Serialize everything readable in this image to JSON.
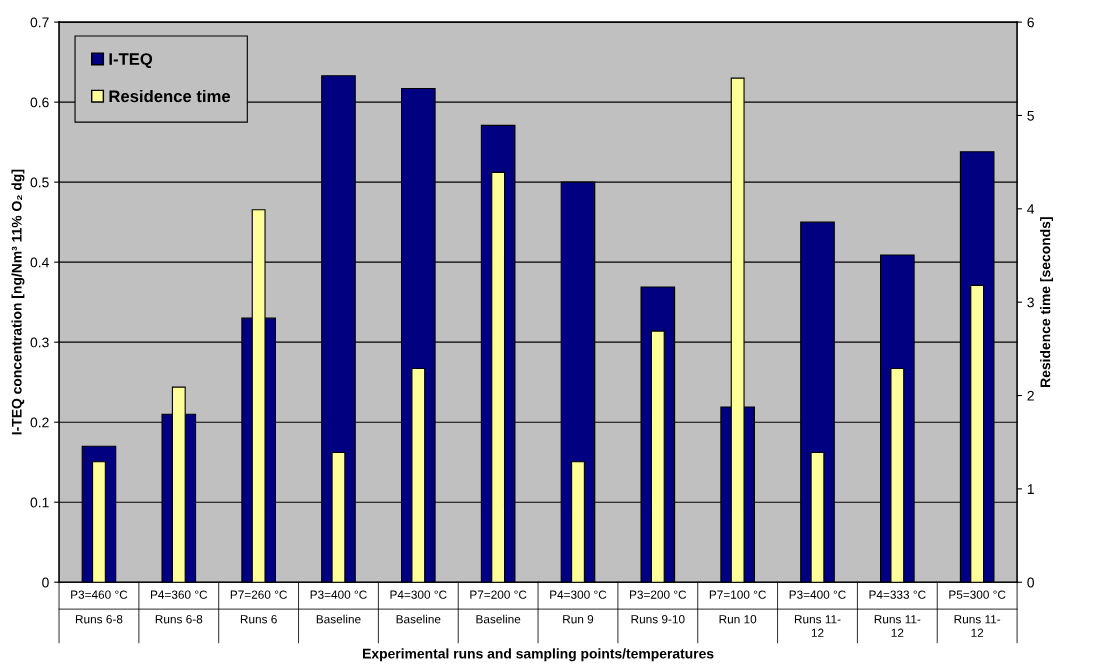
{
  "chart_data": {
    "type": "bar",
    "xlabel": "Experimental runs and sampling points/temperatures",
    "ylabel": "I-TEQ concentration [ng/Nm³ 11% O₂ dg]",
    "y2label": "Residence time [seconds]",
    "categories": [
      "P3=460 °C\nRuns 6-8",
      "P4=360 °C\nRuns 6-8",
      "P7=260 °C\nRuns 6",
      "P3=400 °C\nBaseline",
      "P4=300 °C\nBaseline",
      "P7=200 °C\nBaseline",
      "P4=300 °C\nRun 9",
      "P3=200 °C\nRuns 9-10",
      "P7=100 °C\nRun 10",
      "P3=400 °C\nRuns 11-\n12",
      "P4=333 °C\nRuns 11-\n12",
      "P5=300 °C\nRuns 11-\n12"
    ],
    "series": [
      {
        "name": "I-TEQ",
        "color": "#000080",
        "values": [
          0.17,
          0.21,
          0.33,
          0.633,
          0.617,
          0.571,
          0.5,
          0.369,
          0.219,
          0.45,
          0.409,
          0.538
        ]
      },
      {
        "name": "Residence time",
        "color": "#ffff99",
        "axis": "y2",
        "values": [
          1.29,
          2.09,
          3.99,
          1.39,
          2.29,
          4.39,
          1.29,
          2.69,
          5.4,
          1.39,
          2.29,
          3.18
        ]
      }
    ],
    "ylim": [
      0,
      0.7
    ],
    "yticks": [
      0,
      0.1,
      0.2,
      0.3,
      0.4,
      0.5,
      0.6,
      0.7
    ],
    "y2lim": [
      0,
      6
    ],
    "y2ticks": [
      0,
      1,
      2,
      3,
      4,
      5,
      6
    ],
    "grid": "y",
    "legend": "top left"
  }
}
